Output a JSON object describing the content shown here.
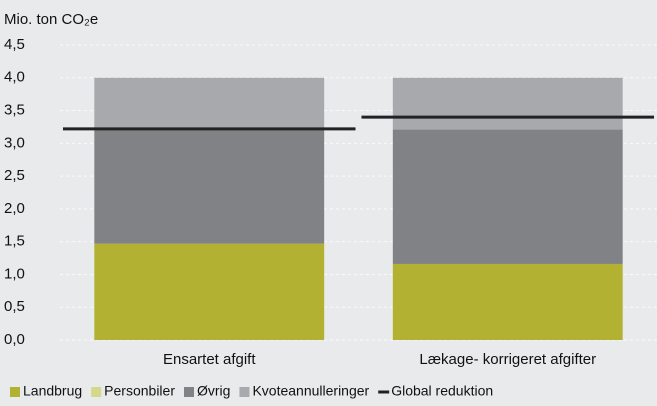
{
  "chart_data": {
    "type": "bar",
    "stacked": true,
    "title": "Mio. ton CO₂e",
    "categories": [
      "Ensartet afgift",
      "Lækage- korrigeret afgifter"
    ],
    "series": [
      {
        "name": "Landbrug",
        "color": "#b3b132",
        "values": [
          1.47,
          1.16
        ]
      },
      {
        "name": "Personbiler",
        "color": "#d4d98a",
        "values": [
          0,
          0
        ]
      },
      {
        "name": "Øvrig",
        "color": "#808285",
        "values": [
          1.75,
          2.05
        ]
      },
      {
        "name": "Kvoteannulleringer",
        "color": "#a7a9ac",
        "values": [
          0.78,
          0.79
        ]
      },
      {
        "name": "Global reduktion",
        "type": "line",
        "color": "#222222",
        "values": [
          3.22,
          3.4
        ]
      }
    ],
    "ylim": [
      0,
      4.5
    ],
    "yticks": [
      {
        "value": 0,
        "label": "0,0"
      },
      {
        "value": 0.5,
        "label": "0,5"
      },
      {
        "value": 1,
        "label": "1,0"
      },
      {
        "value": 1.5,
        "label": "1,5"
      },
      {
        "value": 2,
        "label": "2,0"
      },
      {
        "value": 2.5,
        "label": "2,5"
      },
      {
        "value": 3,
        "label": "3,0"
      },
      {
        "value": 3.5,
        "label": "3,5"
      },
      {
        "value": 4,
        "label": "4,0"
      },
      {
        "value": 4.5,
        "label": "4,5"
      }
    ],
    "grid": true,
    "legend": "bottom"
  }
}
